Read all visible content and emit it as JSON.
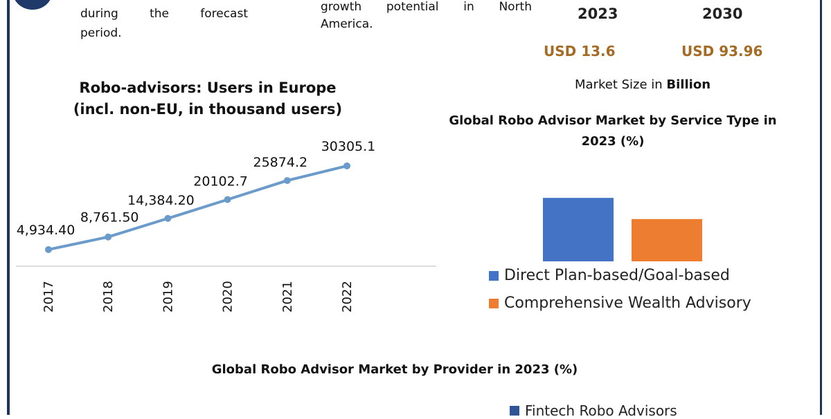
{
  "left_text": {
    "line2": "during the forecast",
    "line3": "period."
  },
  "mid_text": {
    "line1": "growth potential in North",
    "line2": "America."
  },
  "market_size": {
    "year_start": "2023",
    "year_end": "2030",
    "value_start": "USD 13.6",
    "value_end": "USD 93.96",
    "caption_prefix": "Market Size in",
    "caption_unit": "Billion"
  },
  "colors": {
    "navy": "#1f3556",
    "line": "#6a9bcb",
    "blue": "#4472c4",
    "orange": "#ed7d31",
    "usd": "#a36b24"
  },
  "provider_chart": {
    "title": "Global Robo Advisor Market by Provider in 2023 (%)",
    "legend": [
      "Fintech Robo Advisors"
    ]
  },
  "chart_data": [
    {
      "type": "line",
      "title": "Robo-advisors: Users in Europe (incl. non-EU, in thousand users)",
      "title_line1": "Robo-advisors: Users in Europe",
      "title_line2": "(incl. non-EU, in thousand users)",
      "categories": [
        "2017",
        "2018",
        "2019",
        "2020",
        "2021",
        "2022"
      ],
      "values": [
        4934.4,
        8761.5,
        14384.2,
        20102.7,
        25874.2,
        30305.1
      ],
      "data_labels": [
        "4,934.40",
        "8,761.50",
        "14,384.20",
        "20102.7",
        "25874.2",
        "30305.1"
      ],
      "grid": false,
      "color": "#6a9bcb"
    },
    {
      "type": "bar",
      "title": "Global Robo Advisor Market by Service Type in 2023 (%)",
      "title_line1": "Global Robo Advisor Market by Service Type in",
      "title_line2": "2023 (%)",
      "series": [
        {
          "name": "Direct Plan-based/Goal-based",
          "values": [
            60
          ],
          "color": "#4472c4"
        },
        {
          "name": "Comprehensive Wealth Advisory",
          "values": [
            40
          ],
          "color": "#ed7d31"
        }
      ],
      "legend_position": "bottom"
    }
  ]
}
